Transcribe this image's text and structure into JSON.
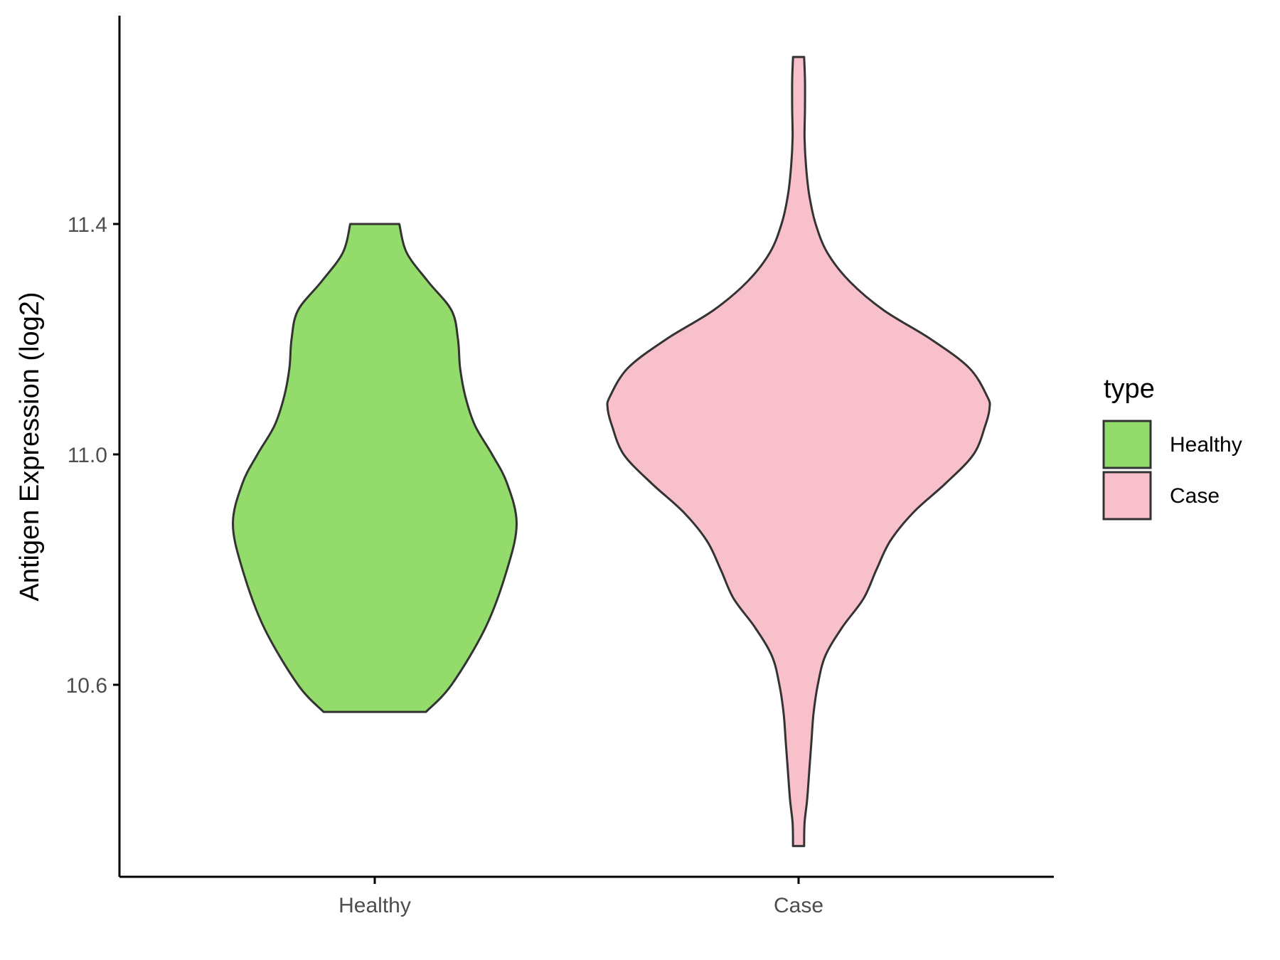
{
  "chart_data": {
    "type": "violin",
    "categories": [
      "Healthy",
      "Case"
    ],
    "xlabel": "",
    "ylabel": "Antigen Expression (log2)",
    "ylim": [
      10.27,
      11.76
    ],
    "yticks": [
      10.6,
      11.0,
      11.4
    ],
    "ytick_labels": [
      "10.6",
      "11.0",
      "11.4"
    ],
    "grid": false,
    "legend": {
      "title": "type",
      "position": "right",
      "entries": [
        {
          "label": "Healthy",
          "color": "#93DC6C"
        },
        {
          "label": "Case",
          "color": "#F8C0CB"
        }
      ]
    },
    "series": [
      {
        "category": "Healthy",
        "color": "#93DC6C",
        "min": 10.553,
        "max": 11.4,
        "density_half_width": [
          [
            10.553,
            0.24
          ],
          [
            10.6,
            0.36
          ],
          [
            10.7,
            0.52
          ],
          [
            10.8,
            0.62
          ],
          [
            10.88,
            0.665
          ],
          [
            10.95,
            0.62
          ],
          [
            11.0,
            0.55
          ],
          [
            11.05,
            0.47
          ],
          [
            11.1,
            0.425
          ],
          [
            11.15,
            0.4
          ],
          [
            11.2,
            0.39
          ],
          [
            11.25,
            0.36
          ],
          [
            11.3,
            0.25
          ],
          [
            11.35,
            0.15
          ],
          [
            11.4,
            0.115
          ]
        ]
      },
      {
        "category": "Case",
        "color": "#F8C0CB",
        "min": 10.32,
        "max": 11.69,
        "density_half_width": [
          [
            10.32,
            0.026
          ],
          [
            10.36,
            0.028
          ],
          [
            10.4,
            0.04
          ],
          [
            10.45,
            0.05
          ],
          [
            10.5,
            0.06
          ],
          [
            10.55,
            0.07
          ],
          [
            10.6,
            0.09
          ],
          [
            10.65,
            0.125
          ],
          [
            10.7,
            0.205
          ],
          [
            10.75,
            0.305
          ],
          [
            10.8,
            0.365
          ],
          [
            10.85,
            0.43
          ],
          [
            10.9,
            0.54
          ],
          [
            10.95,
            0.69
          ],
          [
            11.0,
            0.82
          ],
          [
            11.05,
            0.875
          ],
          [
            11.08,
            0.895
          ],
          [
            11.1,
            0.885
          ],
          [
            11.15,
            0.8
          ],
          [
            11.2,
            0.62
          ],
          [
            11.25,
            0.4
          ],
          [
            11.3,
            0.24
          ],
          [
            11.35,
            0.135
          ],
          [
            11.4,
            0.08
          ],
          [
            11.45,
            0.05
          ],
          [
            11.5,
            0.035
          ],
          [
            11.55,
            0.028
          ],
          [
            11.6,
            0.03
          ],
          [
            11.65,
            0.03
          ],
          [
            11.69,
            0.026
          ]
        ]
      }
    ]
  }
}
